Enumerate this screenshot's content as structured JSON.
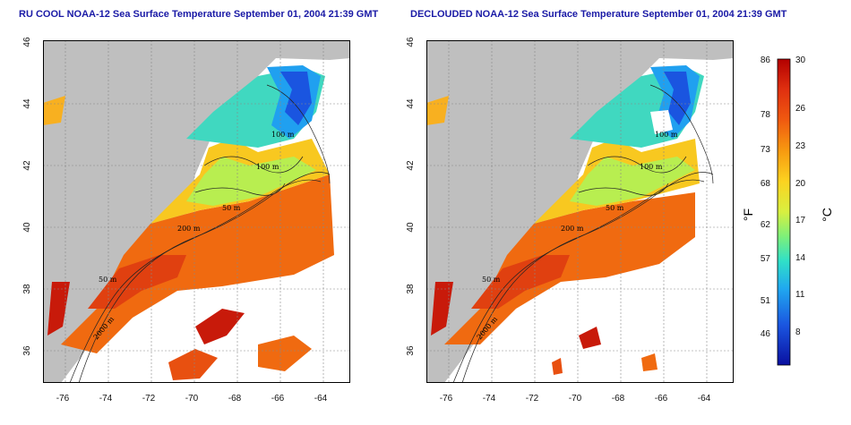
{
  "titles": {
    "left": "RU COOL NOAA-12 Sea Surface Temperature September 01, 2004 21:39 GMT",
    "right": "DECLOUDED NOAA-12 Sea Surface Temperature September 01, 2004 21:39 GMT"
  },
  "axes": {
    "x_ticks": [
      "-76",
      "-74",
      "-72",
      "-70",
      "-68",
      "-66",
      "-64"
    ],
    "y_ticks": [
      "36",
      "38",
      "40",
      "42",
      "44",
      "46"
    ]
  },
  "contour_labels": [
    "100 m",
    "100 m",
    "50 m",
    "200 m",
    "50 m",
    "2000 m"
  ],
  "colorbar": {
    "fahrenheit_ticks": [
      "86",
      "78",
      "73",
      "68",
      "62",
      "57",
      "51",
      "46"
    ],
    "celsius_ticks": [
      "30",
      "26",
      "23",
      "20",
      "17",
      "14",
      "11",
      "8"
    ],
    "fahrenheit_label": "°F",
    "celsius_label": "°C",
    "colors": [
      "#b30000",
      "#e03010",
      "#f05a10",
      "#f79a10",
      "#fcd320",
      "#d8f040",
      "#7df07a",
      "#30e0c8",
      "#20a8f0",
      "#1a55e0",
      "#0a10a0"
    ]
  },
  "colors": {
    "land": "#bfbfbf",
    "ocean_empty": "#ffffff",
    "title": "#1a1aa6"
  }
}
